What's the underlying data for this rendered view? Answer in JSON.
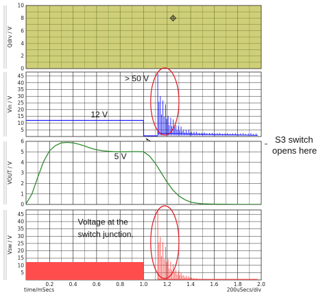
{
  "colors": {
    "plot_bg_top": "#cfcf7a",
    "grid_top": "#6b7a2a",
    "grid": "#111111",
    "vin": "#1a1aff",
    "vout": "#2e8b2e",
    "vsw": "#ff4d4d",
    "ellipse": "#e0141e"
  },
  "chart_data": [
    {
      "type": "line",
      "panel": "qdrv",
      "ylabel": "Qdrv / V",
      "ylim": [
        0,
        10
      ],
      "yticks": [
        "0",
        "2",
        "4",
        "6",
        "8",
        "10"
      ],
      "xlim": [
        0,
        2.0
      ],
      "grid": true,
      "cursor_marker": {
        "x": 1.25,
        "y": 8.0
      }
    },
    {
      "type": "line",
      "panel": "vin",
      "ylabel": "Vin / V",
      "ylim": [
        0,
        48
      ],
      "yticks": [
        "5",
        "10",
        "15",
        "20",
        "25",
        "30",
        "35",
        "40",
        "45"
      ],
      "xlim": [
        0,
        2.0
      ],
      "grid": true,
      "series": [
        {
          "x": [
            0,
            0.999,
            1.0,
            1.12
          ],
          "y": [
            12,
            12,
            0.5,
            0.5
          ]
        }
      ],
      "spike_burst": {
        "start": 1.12,
        "end": 1.97,
        "period": 0.022,
        "peak": 47,
        "decay_tau": 0.09,
        "floor": 2.5,
        "tail": 0.8
      },
      "annotations": [
        {
          "text": "12 V",
          "x": 0.55,
          "y": 14.2
        },
        {
          "text": "> 50 V",
          "x": 0.84,
          "y": 41
        }
      ]
    },
    {
      "type": "line",
      "panel": "vout",
      "ylabel": "VOUT / V",
      "ylim": [
        0,
        6
      ],
      "yticks": [
        "0",
        "1",
        "2",
        "3",
        "4",
        "5",
        "6"
      ],
      "xlim": [
        0,
        2.0
      ],
      "grid": true,
      "series": [
        {
          "x": [
            0,
            0.05,
            0.1,
            0.15,
            0.2,
            0.25,
            0.3,
            0.35,
            0.4,
            0.45,
            0.5,
            0.55,
            0.6,
            0.65,
            0.7,
            0.75,
            0.8,
            0.85,
            0.9,
            0.95,
            1.0,
            1.05,
            1.1,
            1.15,
            1.2,
            1.25,
            1.3,
            1.35,
            1.4,
            1.45,
            1.5,
            1.6,
            1.7,
            1.8,
            1.9,
            2.0
          ],
          "y": [
            0.05,
            1.0,
            2.6,
            4.1,
            5.1,
            5.6,
            5.85,
            5.9,
            5.85,
            5.72,
            5.55,
            5.35,
            5.2,
            5.1,
            5.05,
            5.02,
            5.0,
            5.0,
            5.02,
            5.02,
            5.0,
            4.6,
            3.9,
            3.0,
            2.1,
            1.35,
            0.8,
            0.45,
            0.22,
            0.12,
            0.06,
            0.03,
            0.02,
            0.01,
            0.01,
            0.01
          ]
        }
      ],
      "annotations": [
        {
          "text": "5 V",
          "x": 0.75,
          "y": 4.3
        }
      ]
    },
    {
      "type": "line",
      "panel": "vsw",
      "ylabel": "Vsw / V",
      "ylim": [
        0,
        48
      ],
      "yticks": [
        "5",
        "10",
        "15",
        "20",
        "25",
        "30",
        "35",
        "40",
        "45"
      ],
      "xlim": [
        0,
        2.0
      ],
      "xticks": [
        "0.2",
        "0.4",
        "0.6",
        "0.8",
        "1.0",
        "1.2",
        "1.4",
        "1.6",
        "1.8",
        "2.0"
      ],
      "xlabel": "time/mSecs",
      "xscale_label": "200uSecs/div",
      "grid": true,
      "pwm_fill": {
        "start": 0.0,
        "end": 1.0,
        "level": 12,
        "period": 0.0035
      },
      "spike_burst": {
        "start": 1.12,
        "end": 1.97,
        "period": 0.022,
        "peak": 47,
        "decay_tau": 0.09,
        "floor": 0.0,
        "tail": 0.4
      },
      "annotations": [
        {
          "text": "Voltage at the",
          "x": 0.44,
          "y": 38
        },
        {
          "text": "switch junction.",
          "x": 0.44,
          "y": 29.5
        }
      ]
    }
  ],
  "callout": {
    "line1": "S3 switch",
    "line2": "opens here"
  }
}
